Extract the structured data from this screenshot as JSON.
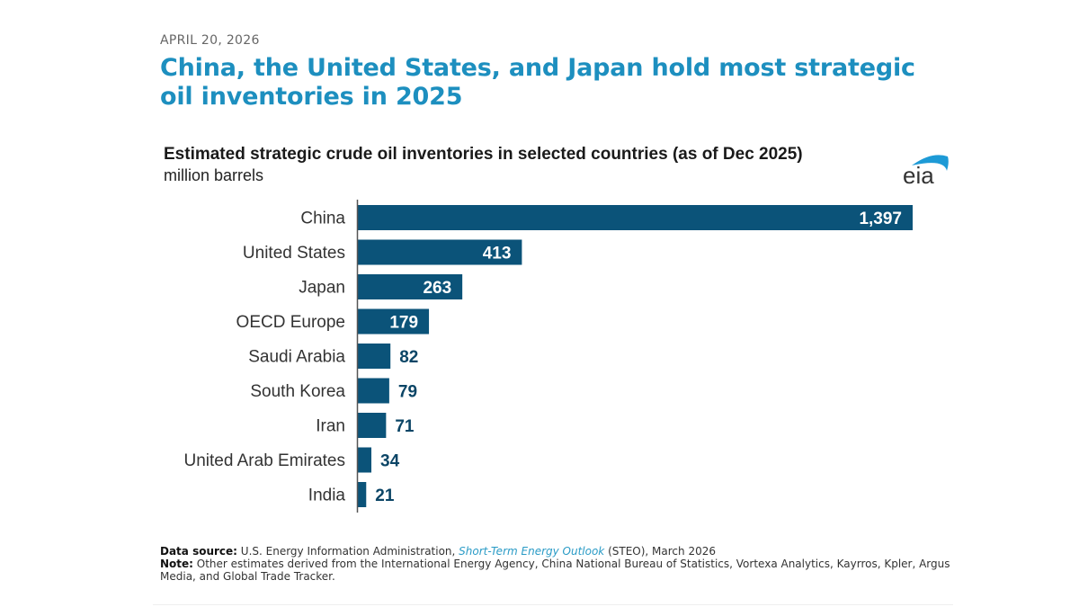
{
  "header": {
    "date": "APRIL 20, 2026",
    "headline": "China, the United States, and Japan hold most strategic oil inventories in 2025"
  },
  "logo": {
    "text": "eia",
    "icon": "eia-logo-icon",
    "arc_color": "#1d9ad6"
  },
  "colors": {
    "bar": "#0b5379",
    "label_inside": "#ffffff",
    "label_outside": "#0b4566",
    "headline": "#1d8fbf",
    "link": "#2a9bc6"
  },
  "chart_data": {
    "type": "bar",
    "orientation": "horizontal",
    "title": "Estimated strategic crude oil inventories in selected countries (as of Dec 2025)",
    "subtitle": "million barrels",
    "xlabel": "",
    "ylabel": "",
    "categories": [
      "China",
      "United States",
      "Japan",
      "OECD Europe",
      "Saudi Arabia",
      "South Korea",
      "Iran",
      "United Arab Emirates",
      "India"
    ],
    "values": [
      1397,
      413,
      263,
      179,
      82,
      79,
      71,
      34,
      21
    ],
    "value_labels": [
      "1,397",
      "413",
      "263",
      "179",
      "82",
      "79",
      "71",
      "34",
      "21"
    ],
    "xlim": [
      0,
      1397
    ],
    "grid": false,
    "legend": "none"
  },
  "footer": {
    "source_label": "Data source:",
    "source_text_pre": " U.S. Energy Information Administration, ",
    "source_link": "Short-Term Energy Outlook",
    "source_text_post": " (STEO), March 2026",
    "note_label": "Note:",
    "note_text": " Other estimates derived from the International Energy Agency, China National Bureau of Statistics, Vortexa Analytics, Kayrros, Kpler, Argus Media, and Global Trade Tracker."
  }
}
